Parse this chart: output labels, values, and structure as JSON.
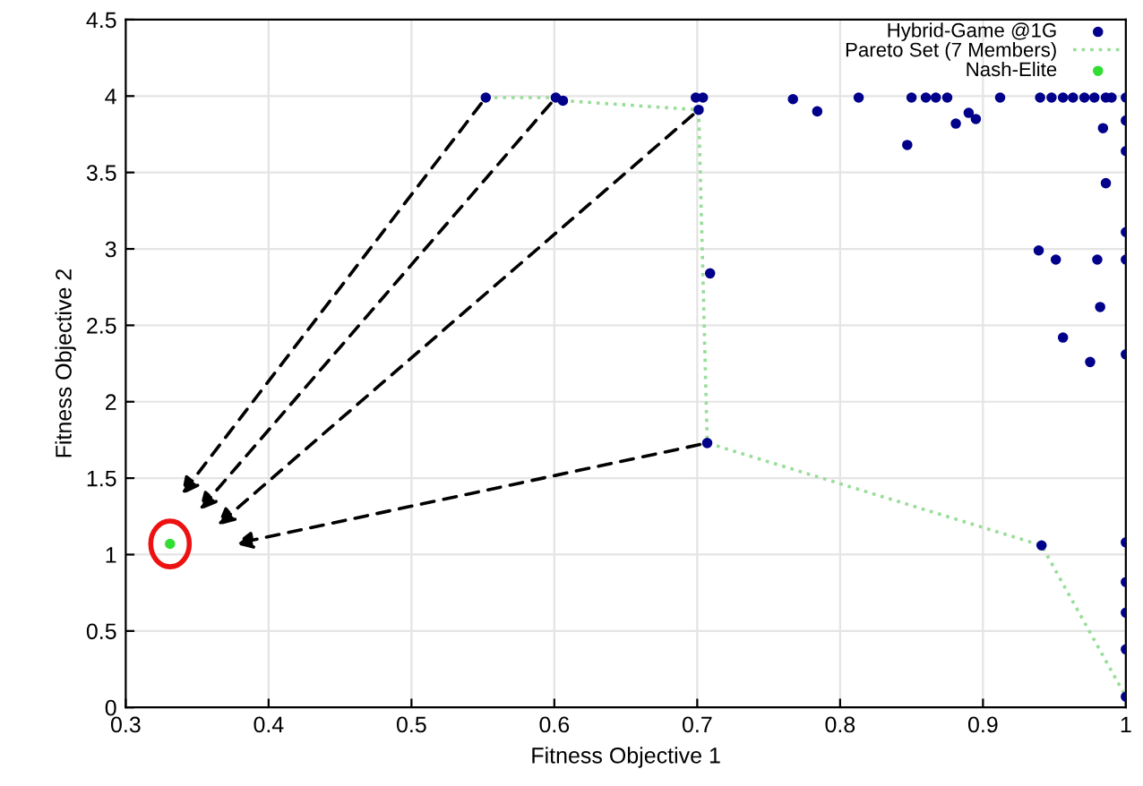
{
  "chart_data": {
    "type": "scatter",
    "xlabel": "Fitness Objective 1",
    "ylabel": "Fitness Objective 2",
    "xlim": [
      0.3,
      1
    ],
    "ylim": [
      0,
      4.5
    ],
    "xticks": [
      0.3,
      0.4,
      0.5,
      0.6,
      0.7,
      0.8,
      0.9,
      1
    ],
    "yticks": [
      0,
      0.5,
      1,
      1.5,
      2,
      2.5,
      3,
      3.5,
      4,
      4.5
    ],
    "grid": true,
    "legend": "top right",
    "series": [
      {
        "name": "Hybrid-Game @1G",
        "marker": "circle",
        "color": "#00008b",
        "x": [
          0.552,
          0.601,
          0.606,
          0.699,
          0.704,
          0.701,
          0.709,
          0.707,
          0.767,
          0.784,
          0.813,
          0.847,
          0.85,
          0.86,
          0.867,
          0.875,
          0.881,
          0.89,
          0.895,
          0.912,
          0.94,
          0.948,
          0.956,
          0.963,
          0.971,
          0.978,
          0.986,
          0.99,
          1.0,
          0.984,
          0.986,
          1.0,
          1.0,
          1.0,
          1.0,
          0.98,
          0.951,
          0.939,
          0.982,
          0.956,
          0.975,
          1.0,
          0.941,
          1.0,
          1.0,
          1.0,
          1.0,
          1.0
        ],
        "values": [
          3.99,
          3.99,
          3.97,
          3.99,
          3.99,
          3.91,
          2.84,
          1.73,
          3.98,
          3.9,
          3.99,
          3.68,
          3.99,
          3.99,
          3.99,
          3.99,
          3.82,
          3.89,
          3.85,
          3.99,
          3.99,
          3.99,
          3.99,
          3.99,
          3.99,
          3.99,
          3.99,
          3.99,
          3.99,
          3.79,
          3.43,
          3.84,
          3.64,
          3.11,
          2.93,
          2.93,
          2.93,
          2.99,
          2.62,
          2.42,
          2.26,
          2.31,
          1.06,
          1.08,
          0.82,
          0.62,
          0.38,
          0.07
        ]
      },
      {
        "name": "Pareto Set (7 Members)",
        "type": "line",
        "marker": "none",
        "line_style": "dotted",
        "color": "#99dd99",
        "x": [
          0.552,
          0.601,
          0.606,
          0.701,
          0.707,
          0.941,
          1.0
        ],
        "values": [
          3.99,
          3.99,
          3.97,
          3.91,
          1.73,
          1.06,
          0.07
        ]
      },
      {
        "name": "Nash-Elite",
        "marker": "circle",
        "color": "#33dd33",
        "x": [
          0.331
        ],
        "values": [
          1.07
        ]
      }
    ]
  }
}
